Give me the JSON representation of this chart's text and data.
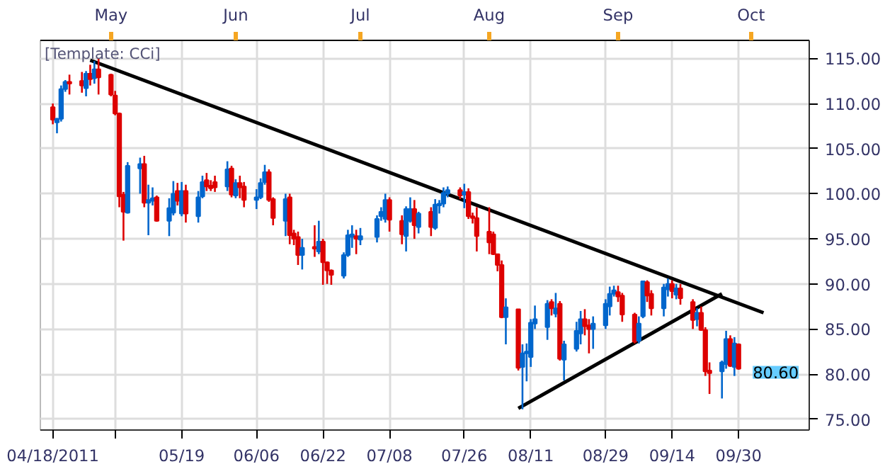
{
  "chart_data": {
    "type": "candlestick",
    "annotations": [
      "[Template: CCi]",
      {
        "text": "80.60",
        "x": "2011-09-30",
        "y": 80.6
      }
    ],
    "xlim": [
      "2011-04-15",
      "2011-10-17"
    ],
    "xticks": [
      {
        "value": "2011-04-18",
        "label": "04/18/2011"
      },
      {
        "value": "2011-05-03",
        "label": null
      },
      {
        "value": "2011-05-19",
        "label": "05/19"
      },
      {
        "value": "2011-06-06",
        "label": "06/06"
      },
      {
        "value": "2011-06-22",
        "label": "06/22"
      },
      {
        "value": "2011-07-08",
        "label": "07/08"
      },
      {
        "value": "2011-07-26",
        "label": "07/26"
      },
      {
        "value": "2011-08-11",
        "label": "08/11"
      },
      {
        "value": "2011-08-29",
        "label": "08/29"
      },
      {
        "value": "2011-09-14",
        "label": "09/14"
      },
      {
        "value": "2011-09-30",
        "label": "09/30"
      }
    ],
    "x2lim": [
      "2011-04-15",
      "2011-10-17"
    ],
    "x2ticks": [
      {
        "value": "2011-05-02",
        "label": "May"
      },
      {
        "value": "2011-06-01",
        "label": "Jun"
      },
      {
        "value": "2011-07-01",
        "label": "Jul"
      },
      {
        "value": "2011-08-01",
        "label": "Aug"
      },
      {
        "value": "2011-09-01",
        "label": "Sep"
      },
      {
        "value": "2011-10-03",
        "label": "Oct"
      }
    ],
    "ylim": [
      73.8,
      117
    ],
    "yticks": [
      {
        "value": 75,
        "label": "75.00"
      },
      {
        "value": 80,
        "label": "80.00"
      },
      {
        "value": 85,
        "label": "85.00"
      },
      {
        "value": 90,
        "label": "90.00"
      },
      {
        "value": 95,
        "label": "95.00"
      },
      {
        "value": 100,
        "label": "100.00"
      },
      {
        "value": 105,
        "label": "105.00"
      },
      {
        "value": 110,
        "label": "110.00"
      },
      {
        "value": 115,
        "label": "115.00"
      }
    ],
    "grid": true,
    "series": [
      {
        "type": "line",
        "color": "#000000",
        "x": [
          "2011-04-27",
          "2011-10-06"
        ],
        "values": [
          114.8,
          86.8
        ]
      },
      {
        "type": "line",
        "color": "#000000",
        "x": [
          "2011-08-08",
          "2011-09-26"
        ],
        "values": [
          76.2,
          88.9
        ]
      },
      {
        "x": [
          "2011-04-18",
          "2011-04-19",
          "2011-04-20",
          "2011-04-21",
          "2011-04-22",
          "2011-04-25",
          "2011-04-26",
          "2011-04-27",
          "2011-04-28",
          "2011-04-29",
          "2011-05-02",
          "2011-05-03",
          "2011-05-04",
          "2011-05-05",
          "2011-05-06",
          "2011-05-09",
          "2011-05-10",
          "2011-05-11",
          "2011-05-12",
          "2011-05-13",
          "2011-05-16",
          "2011-05-17",
          "2011-05-18",
          "2011-05-19",
          "2011-05-20",
          "2011-05-23",
          "2011-05-24",
          "2011-05-25",
          "2011-05-26",
          "2011-05-27",
          "2011-05-30",
          "2011-05-31",
          "2011-06-01",
          "2011-06-02",
          "2011-06-03",
          "2011-06-06",
          "2011-06-07",
          "2011-06-08",
          "2011-06-09",
          "2011-06-10",
          "2011-06-13",
          "2011-06-14",
          "2011-06-15",
          "2011-06-16",
          "2011-06-17",
          "2011-06-20",
          "2011-06-21",
          "2011-06-22",
          "2011-06-23",
          "2011-06-24",
          "2011-06-27",
          "2011-06-28",
          "2011-06-29",
          "2011-06-30",
          "2011-07-01",
          "2011-07-05",
          "2011-07-06",
          "2011-07-07",
          "2011-07-08",
          "2011-07-11",
          "2011-07-12",
          "2011-07-13",
          "2011-07-14",
          "2011-07-15",
          "2011-07-18",
          "2011-07-19",
          "2011-07-20",
          "2011-07-21",
          "2011-07-22",
          "2011-07-25",
          "2011-07-26",
          "2011-07-27",
          "2011-07-28",
          "2011-07-29",
          "2011-08-01",
          "2011-08-02",
          "2011-08-03",
          "2011-08-04",
          "2011-08-05",
          "2011-08-08",
          "2011-08-09",
          "2011-08-10",
          "2011-08-11",
          "2011-08-12",
          "2011-08-15",
          "2011-08-16",
          "2011-08-17",
          "2011-08-18",
          "2011-08-19",
          "2011-08-22",
          "2011-08-23",
          "2011-08-24",
          "2011-08-25",
          "2011-08-26",
          "2011-08-29",
          "2011-08-30",
          "2011-08-31",
          "2011-09-01",
          "2011-09-02",
          "2011-09-05",
          "2011-09-06",
          "2011-09-07",
          "2011-09-08",
          "2011-09-09",
          "2011-09-12",
          "2011-09-13",
          "2011-09-14",
          "2011-09-15",
          "2011-09-16",
          "2011-09-19",
          "2011-09-20",
          "2011-09-21",
          "2011-09-22",
          "2011-09-23",
          "2011-09-26",
          "2011-09-27",
          "2011-09-28",
          "2011-09-29",
          "2011-09-30"
        ],
        "ohlc": [
          [
            109.6,
            110,
            107.7,
            108.2
          ],
          [
            107.9,
            108.4,
            106.7,
            108.3
          ],
          [
            108.3,
            112,
            108,
            111.6
          ],
          [
            111.6,
            112.6,
            111.3,
            112.4
          ],
          [
            112.4,
            113.2,
            111,
            112.2
          ],
          [
            112.5,
            113.5,
            111.2,
            112
          ],
          [
            111.7,
            113.6,
            110.8,
            113.3
          ],
          [
            113.3,
            114.3,
            112,
            112.7
          ],
          [
            112.8,
            114.7,
            112.2,
            113.8
          ],
          [
            113.8,
            115,
            111,
            112.9
          ],
          [
            113.2,
            113.3,
            110.8,
            111
          ],
          [
            110.9,
            111.4,
            108.7,
            108.9
          ],
          [
            108.9,
            109,
            98.5,
            99.7
          ],
          [
            99.9,
            100.2,
            94.8,
            98
          ],
          [
            97.9,
            103.5,
            97.8,
            103.1
          ],
          [
            102.8,
            104,
            100,
            103.3
          ],
          [
            103.3,
            104.2,
            98.5,
            99
          ],
          [
            99,
            101,
            95.4,
            99.3
          ],
          [
            99.2,
            100.7,
            98.7,
            99.5
          ],
          [
            99.6,
            99.8,
            96.9,
            97
          ],
          [
            97,
            99.5,
            95.3,
            98.4
          ],
          [
            97.9,
            101.4,
            97.6,
            100
          ],
          [
            100.3,
            101.2,
            98.7,
            99.2
          ],
          [
            97.8,
            101.3,
            97.5,
            100.3
          ],
          [
            100.3,
            101,
            96.8,
            97.8
          ],
          [
            97.5,
            100.3,
            96.8,
            99.6
          ],
          [
            99.7,
            102,
            99.5,
            101.3
          ],
          [
            101.5,
            102.3,
            100.3,
            100.8
          ],
          [
            100.9,
            101.5,
            100.3,
            100.6
          ],
          [
            101.3,
            102,
            100.2,
            100.7
          ],
          [
            100.8,
            103.6,
            100.3,
            102.7
          ],
          [
            102.8,
            103.1,
            99.6,
            99.9
          ],
          [
            99.8,
            101.6,
            99.5,
            101.2
          ],
          [
            101.2,
            102,
            99.5,
            100.7
          ],
          [
            100.8,
            101.3,
            98.5,
            99.3
          ],
          [
            99.3,
            100.5,
            98.3,
            99.6
          ],
          [
            99.6,
            101.7,
            99.4,
            101.2
          ],
          [
            101.3,
            103.2,
            101,
            102.4
          ],
          [
            102.4,
            102.7,
            99.1,
            99.3
          ],
          [
            99.4,
            99.6,
            96.5,
            97.3
          ],
          [
            97,
            100,
            95.3,
            99.4
          ],
          [
            99.6,
            100,
            94.4,
            95.4
          ],
          [
            95.6,
            96,
            94.3,
            95
          ],
          [
            95.2,
            95.8,
            92.1,
            93.2
          ],
          [
            93.2,
            95,
            91.6,
            94
          ],
          [
            94.1,
            96.5,
            93,
            93.9
          ],
          [
            93.6,
            97,
            93.3,
            94.7
          ],
          [
            94.7,
            95,
            89.9,
            92.4
          ],
          [
            92.4,
            92.5,
            90,
            91.5
          ],
          [
            91.5,
            91.6,
            89.9,
            91
          ],
          [
            90.9,
            93.5,
            90.6,
            93.2
          ],
          [
            93.2,
            96,
            93,
            95.4
          ],
          [
            95.2,
            96.5,
            94,
            95.5
          ],
          [
            95.3,
            96,
            93.3,
            95
          ],
          [
            94.9,
            96.2,
            94.3,
            95.3
          ],
          [
            95.2,
            97.6,
            94.6,
            97.2
          ],
          [
            97.5,
            98.5,
            97,
            98
          ],
          [
            97.2,
            100,
            96.8,
            99.3
          ],
          [
            99.3,
            99.6,
            95.8,
            97.1
          ],
          [
            97,
            97.6,
            94.4,
            95.5
          ],
          [
            95.3,
            98.6,
            93.6,
            98.3
          ],
          [
            97,
            99.6,
            96.8,
            98.3
          ],
          [
            98.3,
            99.3,
            95,
            96.5
          ],
          [
            96.3,
            98,
            95.6,
            97.8
          ],
          [
            98,
            98.5,
            95.3,
            96.3
          ],
          [
            96.2,
            99.4,
            96,
            98.8
          ],
          [
            98.7,
            99.3,
            97.8,
            98.9
          ],
          [
            98.9,
            100.7,
            98.5,
            100.1
          ],
          [
            100,
            100.8,
            99.6,
            100.4
          ],
          [
            100.4,
            100.7,
            99.4,
            99.8
          ],
          [
            99.9,
            101.1,
            98.4,
            100.2
          ],
          [
            100.2,
            100.6,
            97.2,
            97.5
          ],
          [
            97.5,
            97.9,
            96.7,
            97.3
          ],
          [
            97.3,
            98.5,
            93.6,
            95.3
          ],
          [
            95.8,
            98.5,
            93.3,
            94.6
          ],
          [
            95.5,
            95.8,
            93.2,
            93.3
          ],
          [
            93.3,
            93.3,
            91.4,
            92.1
          ],
          [
            92.1,
            92.6,
            86.2,
            86.3
          ],
          [
            86.3,
            88.4,
            83.3,
            87.4
          ],
          [
            87.2,
            87.2,
            80.4,
            80.7
          ],
          [
            80.8,
            83.3,
            76.1,
            82.3
          ],
          [
            82.3,
            83.4,
            79.2,
            82.5
          ],
          [
            81.9,
            86.1,
            80.8,
            85.7
          ],
          [
            85.6,
            87.6,
            85,
            86.1
          ],
          [
            85.2,
            88.2,
            83.8,
            87.8
          ],
          [
            88,
            88.3,
            86.5,
            87.3
          ],
          [
            86.7,
            89,
            86.3,
            87.3
          ],
          [
            87.8,
            88.1,
            81.5,
            81.7
          ],
          [
            81.6,
            83.7,
            79.3,
            83.3
          ],
          [
            82.8,
            85.8,
            82.5,
            84.8
          ],
          [
            84.5,
            87,
            83.3,
            86.1
          ],
          [
            86.1,
            87.2,
            84.3,
            85.3
          ],
          [
            85.4,
            86.1,
            82.3,
            85
          ],
          [
            85,
            86.4,
            82.8,
            85.6
          ],
          [
            85.4,
            88.3,
            85,
            87.8
          ],
          [
            87.5,
            89.7,
            86.5,
            88.9
          ],
          [
            88.9,
            89.8,
            88.6,
            89.3
          ],
          [
            89.1,
            89.8,
            88,
            88.6
          ],
          [
            88.7,
            89,
            85.8,
            86.6
          ],
          [
            86.6,
            86.8,
            83.4,
            83.6
          ],
          [
            83.7,
            86.4,
            83.4,
            85.6
          ],
          [
            86.4,
            90.3,
            86.2,
            90.3
          ],
          [
            90.2,
            90.4,
            88,
            88.7
          ],
          [
            88.9,
            89.3,
            86.5,
            87.3
          ],
          [
            87.3,
            90,
            86.4,
            89.6
          ],
          [
            89.4,
            90.6,
            88.6,
            90
          ],
          [
            90,
            90.4,
            88.4,
            89.2
          ],
          [
            88.8,
            90,
            88.3,
            89.5
          ],
          [
            89.5,
            90,
            87.7,
            88.4
          ],
          [
            88,
            88.3,
            85,
            86
          ],
          [
            86.1,
            87.3,
            85.3,
            86.8
          ],
          [
            86.8,
            87.5,
            84.8,
            84.9
          ],
          [
            84.9,
            85.2,
            79.8,
            80.3
          ],
          [
            80.4,
            81.3,
            77.8,
            80.1
          ],
          [
            80.3,
            81.5,
            77.3,
            81.3
          ],
          [
            81.1,
            84.8,
            80.6,
            83.9
          ],
          [
            83.9,
            84.3,
            80.8,
            80.9
          ],
          [
            80.8,
            84.1,
            79.8,
            83.4
          ],
          [
            83.3,
            83.4,
            80.5,
            80.6
          ]
        ],
        "colors": [
          "#dd0000",
          "#0066cc",
          "#0066cc",
          "#0066cc",
          "#dd0000",
          "#dd0000",
          "#0066cc",
          "#dd0000",
          "#0066cc",
          "#dd0000",
          "#dd0000",
          "#dd0000",
          "#dd0000",
          "#dd0000",
          "#0066cc",
          "#0066cc",
          "#dd0000",
          "#0066cc",
          "#0066cc",
          "#dd0000",
          "#0066cc",
          "#0066cc",
          "#dd0000",
          "#0066cc",
          "#dd0000",
          "#0066cc",
          "#0066cc",
          "#dd0000",
          "#dd0000",
          "#dd0000",
          "#0066cc",
          "#dd0000",
          "#0066cc",
          "#dd0000",
          "#dd0000",
          "#0066cc",
          "#0066cc",
          "#0066cc",
          "#dd0000",
          "#dd0000",
          "#0066cc",
          "#dd0000",
          "#dd0000",
          "#dd0000",
          "#0066cc",
          "#dd0000",
          "#0066cc",
          "#dd0000",
          "#dd0000",
          "#dd0000",
          "#0066cc",
          "#0066cc",
          "#0066cc",
          "#dd0000",
          "#0066cc",
          "#0066cc",
          "#0066cc",
          "#0066cc",
          "#dd0000",
          "#dd0000",
          "#0066cc",
          "#0066cc",
          "#dd0000",
          "#0066cc",
          "#dd0000",
          "#0066cc",
          "#0066cc",
          "#0066cc",
          "#0066cc",
          "#dd0000",
          "#0066cc",
          "#dd0000",
          "#dd0000",
          "#dd0000",
          "#dd0000",
          "#dd0000",
          "#dd0000",
          "#dd0000",
          "#0066cc",
          "#dd0000",
          "#0066cc",
          "#0066cc",
          "#0066cc",
          "#0066cc",
          "#0066cc",
          "#dd0000",
          "#0066cc",
          "#dd0000",
          "#0066cc",
          "#0066cc",
          "#0066cc",
          "#dd0000",
          "#dd0000",
          "#0066cc",
          "#0066cc",
          "#0066cc",
          "#0066cc",
          "#dd0000",
          "#dd0000",
          "#dd0000",
          "#0066cc",
          "#0066cc",
          "#dd0000",
          "#dd0000",
          "#0066cc",
          "#0066cc",
          "#dd0000",
          "#0066cc",
          "#dd0000",
          "#dd0000",
          "#0066cc",
          "#dd0000",
          "#dd0000",
          "#dd0000",
          "#0066cc",
          "#0066cc",
          "#dd0000",
          "#0066cc",
          "#dd0000"
        ]
      }
    ]
  }
}
